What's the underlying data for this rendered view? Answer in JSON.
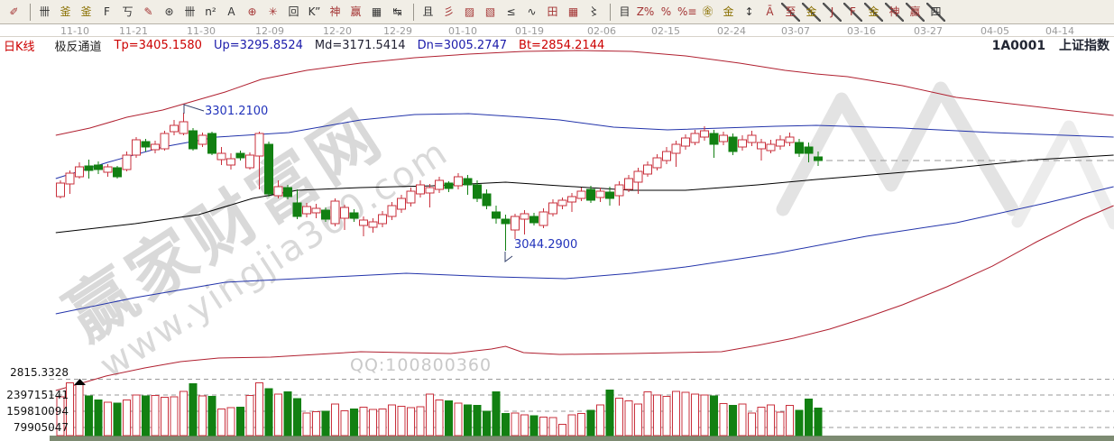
{
  "header": {
    "kline": "日K线"
  },
  "indicator": {
    "name": "极反通道",
    "tp": "Tp=3405.1580",
    "up": "Up=3295.8524",
    "md": "Md=3171.5414",
    "dn": "Dn=3005.2747",
    "bt": "Bt=2854.2144"
  },
  "symbol": {
    "code": "1A0001",
    "name": "上证指数"
  },
  "annotations": {
    "high": "3301.2100",
    "low": "3044.2900"
  },
  "left_labels": {
    "price": "2815.3328",
    "vol1": "239715141",
    "vol2": "159810094",
    "vol3": "79905047"
  },
  "watermark": {
    "brand": "赢家财富网",
    "url": "www.yingjia360.com",
    "qq": "QQ:100800360"
  },
  "toolbar": {
    "groups": [
      [
        {
          "g": "✐",
          "c": "r"
        }
      ],
      [
        {
          "g": "卌",
          "c": "k"
        },
        {
          "g": "釜",
          "c": "o"
        },
        {
          "g": "釜",
          "c": "o"
        },
        {
          "g": "F",
          "c": "k"
        },
        {
          "g": "丂",
          "c": "k"
        },
        {
          "g": "✎",
          "c": "r"
        },
        {
          "g": "⊛",
          "c": "k"
        },
        {
          "g": "卌",
          "c": "k"
        },
        {
          "g": "n²",
          "c": "k"
        },
        {
          "g": "A",
          "c": "k"
        },
        {
          "g": "⊕",
          "c": "r"
        },
        {
          "g": "✳",
          "c": "r"
        },
        {
          "g": "回",
          "c": "k"
        },
        {
          "g": "K”",
          "c": "k"
        },
        {
          "g": "神",
          "c": "r"
        },
        {
          "g": "赢",
          "c": "r"
        },
        {
          "g": "▦",
          "c": "k"
        },
        {
          "g": "↹",
          "c": "k"
        }
      ],
      [
        {
          "g": "且",
          "c": "k"
        },
        {
          "g": "彡",
          "c": "r"
        },
        {
          "g": "▨",
          "c": "r"
        },
        {
          "g": "▧",
          "c": "r"
        },
        {
          "g": "≤",
          "c": "k"
        },
        {
          "g": "∿",
          "c": "k"
        },
        {
          "g": "田",
          "c": "r"
        },
        {
          "g": "▦",
          "c": "r"
        },
        {
          "g": "〻",
          "c": "k"
        }
      ],
      [
        {
          "g": "目",
          "c": "k"
        },
        {
          "g": "Z%",
          "c": "r"
        },
        {
          "g": "%",
          "c": "r"
        },
        {
          "g": "%≡",
          "c": "r"
        },
        {
          "g": "㊎",
          "c": "o"
        },
        {
          "g": "金",
          "c": "o"
        },
        {
          "g": "↕",
          "c": "k"
        },
        {
          "g": "Ā",
          "c": "r"
        },
        {
          "g": "至",
          "c": "r",
          "s": 1
        },
        {
          "g": "金",
          "c": "o",
          "s": 1
        },
        {
          "g": "J",
          "c": "r",
          "s": 1
        },
        {
          "g": "F",
          "c": "r",
          "s": 1
        },
        {
          "g": "金",
          "c": "o",
          "s": 1
        },
        {
          "g": "神",
          "c": "r",
          "s": 1
        },
        {
          "g": "赢",
          "c": "r",
          "s": 1
        },
        {
          "g": "四",
          "c": "k",
          "s": 1
        }
      ]
    ]
  },
  "colors": {
    "up": "#c9303c",
    "down": "#128012",
    "channel_red": "#b02030",
    "channel_blue": "#2233aa",
    "channel_mid": "#000000",
    "annotation": "#2233bb",
    "leader": "#33406b",
    "grid": "#9a9a9a",
    "strip": "#7d8b72",
    "watermark": "#e3e3e3"
  },
  "chart_data": {
    "type": "candlestick",
    "title": "1A0001 上证指数 日K线 极反通道",
    "x_axis_dates": [
      "11-10",
      "11-21",
      "11-30",
      "12-09",
      "12-20",
      "12-29",
      "01-10",
      "01-19",
      "02-06",
      "02-15",
      "02-24",
      "03-07",
      "03-16",
      "03-27",
      "04-05",
      "04-14"
    ],
    "channel_values": {
      "Tp": 3405.158,
      "Up": 3295.8524,
      "Md": 3171.5414,
      "Dn": 3005.2747,
      "Bt": 2854.2144
    },
    "peak_annotation": 3301.21,
    "trough_annotation": 3044.29,
    "price_floor_label": 2815.3328,
    "volume_axis": [
      239715141,
      159810094,
      79905047
    ],
    "last_close": 3212.2,
    "legend_position": "top",
    "grid": "volume-only-dashed",
    "ohlc": [
      [
        3145.0,
        3175.2,
        3141.6,
        3170.2
      ],
      [
        3168.5,
        3193.7,
        3150.0,
        3188.6
      ],
      [
        3181.9,
        3208.8,
        3178.6,
        3200.4
      ],
      [
        3202.1,
        3213.8,
        3178.6,
        3193.7
      ],
      [
        3203.8,
        3210.5,
        3187.0,
        3195.4
      ],
      [
        3190.3,
        3205.4,
        3181.9,
        3200.4
      ],
      [
        3198.7,
        3202.1,
        3178.6,
        3181.9
      ],
      [
        3195.4,
        3229.0,
        3192.0,
        3222.2
      ],
      [
        3222.2,
        3255.8,
        3217.2,
        3250.8
      ],
      [
        3247.4,
        3252.5,
        3229.0,
        3237.4
      ],
      [
        3232.3,
        3249.1,
        3225.6,
        3242.4
      ],
      [
        3234.0,
        3267.6,
        3230.6,
        3262.6
      ],
      [
        3265.9,
        3287.8,
        3259.2,
        3277.7
      ],
      [
        3262.6,
        3301.2,
        3259.2,
        3284.4
      ],
      [
        3267.6,
        3272.6,
        3230.6,
        3234.0
      ],
      [
        3242.4,
        3264.2,
        3237.4,
        3259.2
      ],
      [
        3262.6,
        3265.9,
        3222.2,
        3225.6
      ],
      [
        3213.8,
        3237.4,
        3203.8,
        3225.6
      ],
      [
        3203.8,
        3225.6,
        3195.4,
        3215.5
      ],
      [
        3225.6,
        3230.6,
        3212.2,
        3217.2
      ],
      [
        3198.7,
        3227.3,
        3195.4,
        3222.2
      ],
      [
        3220.6,
        3265.9,
        3158.4,
        3262.6
      ],
      [
        3242.4,
        3247.4,
        3145.0,
        3150.0
      ],
      [
        3146.6,
        3175.2,
        3141.6,
        3163.4
      ],
      [
        3161.8,
        3166.8,
        3139.9,
        3145.0
      ],
      [
        3133.2,
        3158.4,
        3103.0,
        3108.0
      ],
      [
        3113.0,
        3133.2,
        3106.3,
        3126.5
      ],
      [
        3114.7,
        3131.5,
        3104.6,
        3123.1
      ],
      [
        3119.8,
        3124.8,
        3097.9,
        3103.0
      ],
      [
        3094.6,
        3141.6,
        3089.5,
        3136.6
      ],
      [
        3104.6,
        3129.8,
        3082.8,
        3124.8
      ],
      [
        3114.7,
        3121.4,
        3097.9,
        3104.6
      ],
      [
        3091.2,
        3108.0,
        3071.0,
        3101.3
      ],
      [
        3087.8,
        3104.6,
        3077.8,
        3097.9
      ],
      [
        3094.6,
        3118.1,
        3087.8,
        3111.4
      ],
      [
        3108.0,
        3134.9,
        3101.3,
        3128.2
      ],
      [
        3121.4,
        3148.3,
        3114.7,
        3141.6
      ],
      [
        3133.2,
        3161.8,
        3126.5,
        3155.0
      ],
      [
        3150.0,
        3175.2,
        3143.3,
        3166.8
      ],
      [
        3151.7,
        3168.5,
        3124.8,
        3161.8
      ],
      [
        3158.4,
        3181.9,
        3151.7,
        3175.2
      ],
      [
        3170.2,
        3173.5,
        3153.4,
        3160.1
      ],
      [
        3165.1,
        3188.6,
        3158.4,
        3181.9
      ],
      [
        3178.6,
        3185.3,
        3148.3,
        3166.8
      ],
      [
        3166.8,
        3175.2,
        3134.9,
        3141.6
      ],
      [
        3150.0,
        3158.4,
        3121.4,
        3128.2
      ],
      [
        3116.4,
        3128.2,
        3094.6,
        3104.6
      ],
      [
        3103.0,
        3111.4,
        3044.2,
        3094.6
      ],
      [
        3082.8,
        3113.0,
        3066.0,
        3108.0
      ],
      [
        3103.0,
        3119.8,
        3074.4,
        3113.0
      ],
      [
        3108.0,
        3114.7,
        3091.2,
        3096.3
      ],
      [
        3091.2,
        3123.1,
        3086.2,
        3116.4
      ],
      [
        3113.0,
        3139.9,
        3108.0,
        3133.2
      ],
      [
        3128.2,
        3143.3,
        3121.4,
        3138.2
      ],
      [
        3134.9,
        3151.7,
        3116.4,
        3145.0
      ],
      [
        3141.6,
        3161.8,
        3136.6,
        3155.0
      ],
      [
        3158.4,
        3165.1,
        3133.2,
        3138.2
      ],
      [
        3143.3,
        3161.8,
        3134.9,
        3155.0
      ],
      [
        3153.4,
        3163.4,
        3128.2,
        3141.6
      ],
      [
        3146.6,
        3173.5,
        3128.2,
        3166.8
      ],
      [
        3158.4,
        3185.3,
        3153.4,
        3178.6
      ],
      [
        3171.8,
        3198.7,
        3150.0,
        3192.0
      ],
      [
        3187.0,
        3210.5,
        3181.9,
        3203.8
      ],
      [
        3198.7,
        3223.9,
        3193.7,
        3217.2
      ],
      [
        3212.2,
        3237.4,
        3205.4,
        3229.0
      ],
      [
        3225.6,
        3249.1,
        3200.4,
        3242.4
      ],
      [
        3239.0,
        3260.9,
        3232.3,
        3254.2
      ],
      [
        3245.8,
        3269.3,
        3240.7,
        3262.6
      ],
      [
        3255.8,
        3276.0,
        3249.1,
        3267.6
      ],
      [
        3262.6,
        3269.3,
        3217.2,
        3242.4
      ],
      [
        3247.4,
        3265.9,
        3240.7,
        3259.2
      ],
      [
        3255.8,
        3262.6,
        3222.2,
        3229.0
      ],
      [
        3237.4,
        3259.2,
        3230.6,
        3250.8
      ],
      [
        3245.8,
        3267.6,
        3239.0,
        3259.2
      ],
      [
        3234.0,
        3252.5,
        3212.2,
        3245.8
      ],
      [
        3230.6,
        3250.8,
        3225.6,
        3242.4
      ],
      [
        3239.0,
        3259.2,
        3232.3,
        3250.8
      ],
      [
        3245.8,
        3264.2,
        3239.0,
        3255.8
      ],
      [
        3245.8,
        3252.5,
        3218.9,
        3225.6
      ],
      [
        3237.4,
        3245.8,
        3208.8,
        3225.6
      ],
      [
        3218.9,
        3229.0,
        3202.1,
        3212.2
      ]
    ],
    "volumes": [
      230000000,
      300000000,
      290000000,
      235000000,
      215000000,
      205000000,
      200000000,
      215000000,
      240000000,
      235000000,
      238000000,
      228000000,
      230000000,
      258000000,
      295000000,
      235000000,
      232000000,
      170000000,
      178000000,
      180000000,
      238000000,
      300000000,
      270000000,
      245000000,
      255000000,
      222000000,
      150000000,
      158000000,
      160000000,
      195000000,
      162000000,
      172000000,
      180000000,
      168000000,
      172000000,
      190000000,
      185000000,
      178000000,
      182000000,
      245000000,
      215000000,
      210000000,
      200000000,
      190000000,
      188000000,
      160000000,
      255000000,
      148000000,
      152000000,
      142000000,
      138000000,
      130000000,
      128000000,
      95000000,
      142000000,
      148000000,
      165000000,
      190000000,
      265000000,
      225000000,
      210000000,
      195000000,
      255000000,
      240000000,
      232000000,
      258000000,
      252000000,
      245000000,
      240000000,
      235000000,
      198000000,
      188000000,
      195000000,
      150000000,
      180000000,
      190000000,
      155000000,
      188000000,
      165000000,
      220000000,
      175000000
    ],
    "channels": {
      "Tp": [
        [
          -0.5,
          3259.2
        ],
        [
          3.1,
          3272.6
        ],
        [
          7.0,
          3292.8
        ],
        [
          10.8,
          3306.2
        ],
        [
          14.1,
          3323.0
        ],
        [
          17.4,
          3339.8
        ],
        [
          21.2,
          3363.4
        ],
        [
          26.0,
          3380.2
        ],
        [
          31.7,
          3393.6
        ],
        [
          37.4,
          3403.7
        ],
        [
          43.1,
          3410.4
        ],
        [
          48.9,
          3415.4
        ],
        [
          54.6,
          3417.1
        ],
        [
          60.3,
          3415.4
        ],
        [
          66.0,
          3407.0
        ],
        [
          71.7,
          3393.6
        ],
        [
          76.5,
          3380.2
        ],
        [
          79.8,
          3373.4
        ],
        [
          83.1,
          3368.4
        ],
        [
          88.9,
          3351.6
        ],
        [
          94.6,
          3329.8
        ],
        [
          100.3,
          3318.0
        ],
        [
          106.0,
          3306.2
        ],
        [
          111.2,
          3296.2
        ]
      ],
      "Up": [
        [
          -0.5,
          3178.6
        ],
        [
          5.0,
          3208.8
        ],
        [
          10.8,
          3237.4
        ],
        [
          16.5,
          3255.8
        ],
        [
          24.1,
          3264.2
        ],
        [
          31.7,
          3287.8
        ],
        [
          37.4,
          3297.9
        ],
        [
          43.1,
          3299.5
        ],
        [
          48.9,
          3292.8
        ],
        [
          52.7,
          3287.8
        ],
        [
          58.4,
          3274.3
        ],
        [
          64.1,
          3269.3
        ],
        [
          69.8,
          3272.6
        ],
        [
          75.5,
          3276.0
        ],
        [
          79.8,
          3277.7
        ],
        [
          88.9,
          3272.6
        ],
        [
          98.4,
          3264.2
        ],
        [
          111.2,
          3255.8
        ]
      ],
      "Md": [
        [
          -0.5,
          3077.8
        ],
        [
          7.9,
          3094.6
        ],
        [
          14.6,
          3111.4
        ],
        [
          20.3,
          3141.6
        ],
        [
          25.0,
          3156.7
        ],
        [
          31.7,
          3161.8
        ],
        [
          39.3,
          3165.1
        ],
        [
          47.0,
          3171.8
        ],
        [
          52.7,
          3165.1
        ],
        [
          60.3,
          3156.7
        ],
        [
          66.0,
          3156.7
        ],
        [
          73.6,
          3166.8
        ],
        [
          79.8,
          3176.9
        ],
        [
          93.6,
          3197.0
        ],
        [
          103.1,
          3213.8
        ],
        [
          111.2,
          3222.2
        ]
      ],
      "Dn": [
        [
          -0.5,
          2926.6
        ],
        [
          7.9,
          2956.8
        ],
        [
          17.4,
          2985.4
        ],
        [
          27.0,
          2993.8
        ],
        [
          36.5,
          3002.2
        ],
        [
          46.0,
          2995.5
        ],
        [
          53.3,
          2992.1
        ],
        [
          60.3,
          3002.2
        ],
        [
          66.0,
          3014.0
        ],
        [
          75.5,
          3039.2
        ],
        [
          85.1,
          3071.0
        ],
        [
          94.6,
          3096.3
        ],
        [
          104.1,
          3133.2
        ],
        [
          111.2,
          3163.4
        ]
      ],
      "Bt": [
        [
          -0.5,
          2783.8
        ],
        [
          2.2,
          2797.2
        ],
        [
          4.8,
          2810.6
        ],
        [
          8.9,
          2825.7
        ],
        [
          12.7,
          2837.5
        ],
        [
          16.7,
          2844.2
        ],
        [
          22.2,
          2845.9
        ],
        [
          31.7,
          2856.0
        ],
        [
          41.2,
          2852.6
        ],
        [
          45.5,
          2861.0
        ],
        [
          47.0,
          2866.1
        ],
        [
          48.9,
          2854.3
        ],
        [
          52.7,
          2850.9
        ],
        [
          60.3,
          2852.6
        ],
        [
          69.8,
          2856.0
        ],
        [
          73.6,
          2867.7
        ],
        [
          77.4,
          2881.2
        ],
        [
          81.2,
          2898.0
        ],
        [
          85.1,
          2919.8
        ],
        [
          88.9,
          2943.3
        ],
        [
          93.6,
          2976.9
        ],
        [
          98.4,
          3015.5
        ],
        [
          103.1,
          3060.9
        ],
        [
          107.9,
          3102.9
        ],
        [
          111.2,
          3128.1
        ]
      ]
    }
  }
}
